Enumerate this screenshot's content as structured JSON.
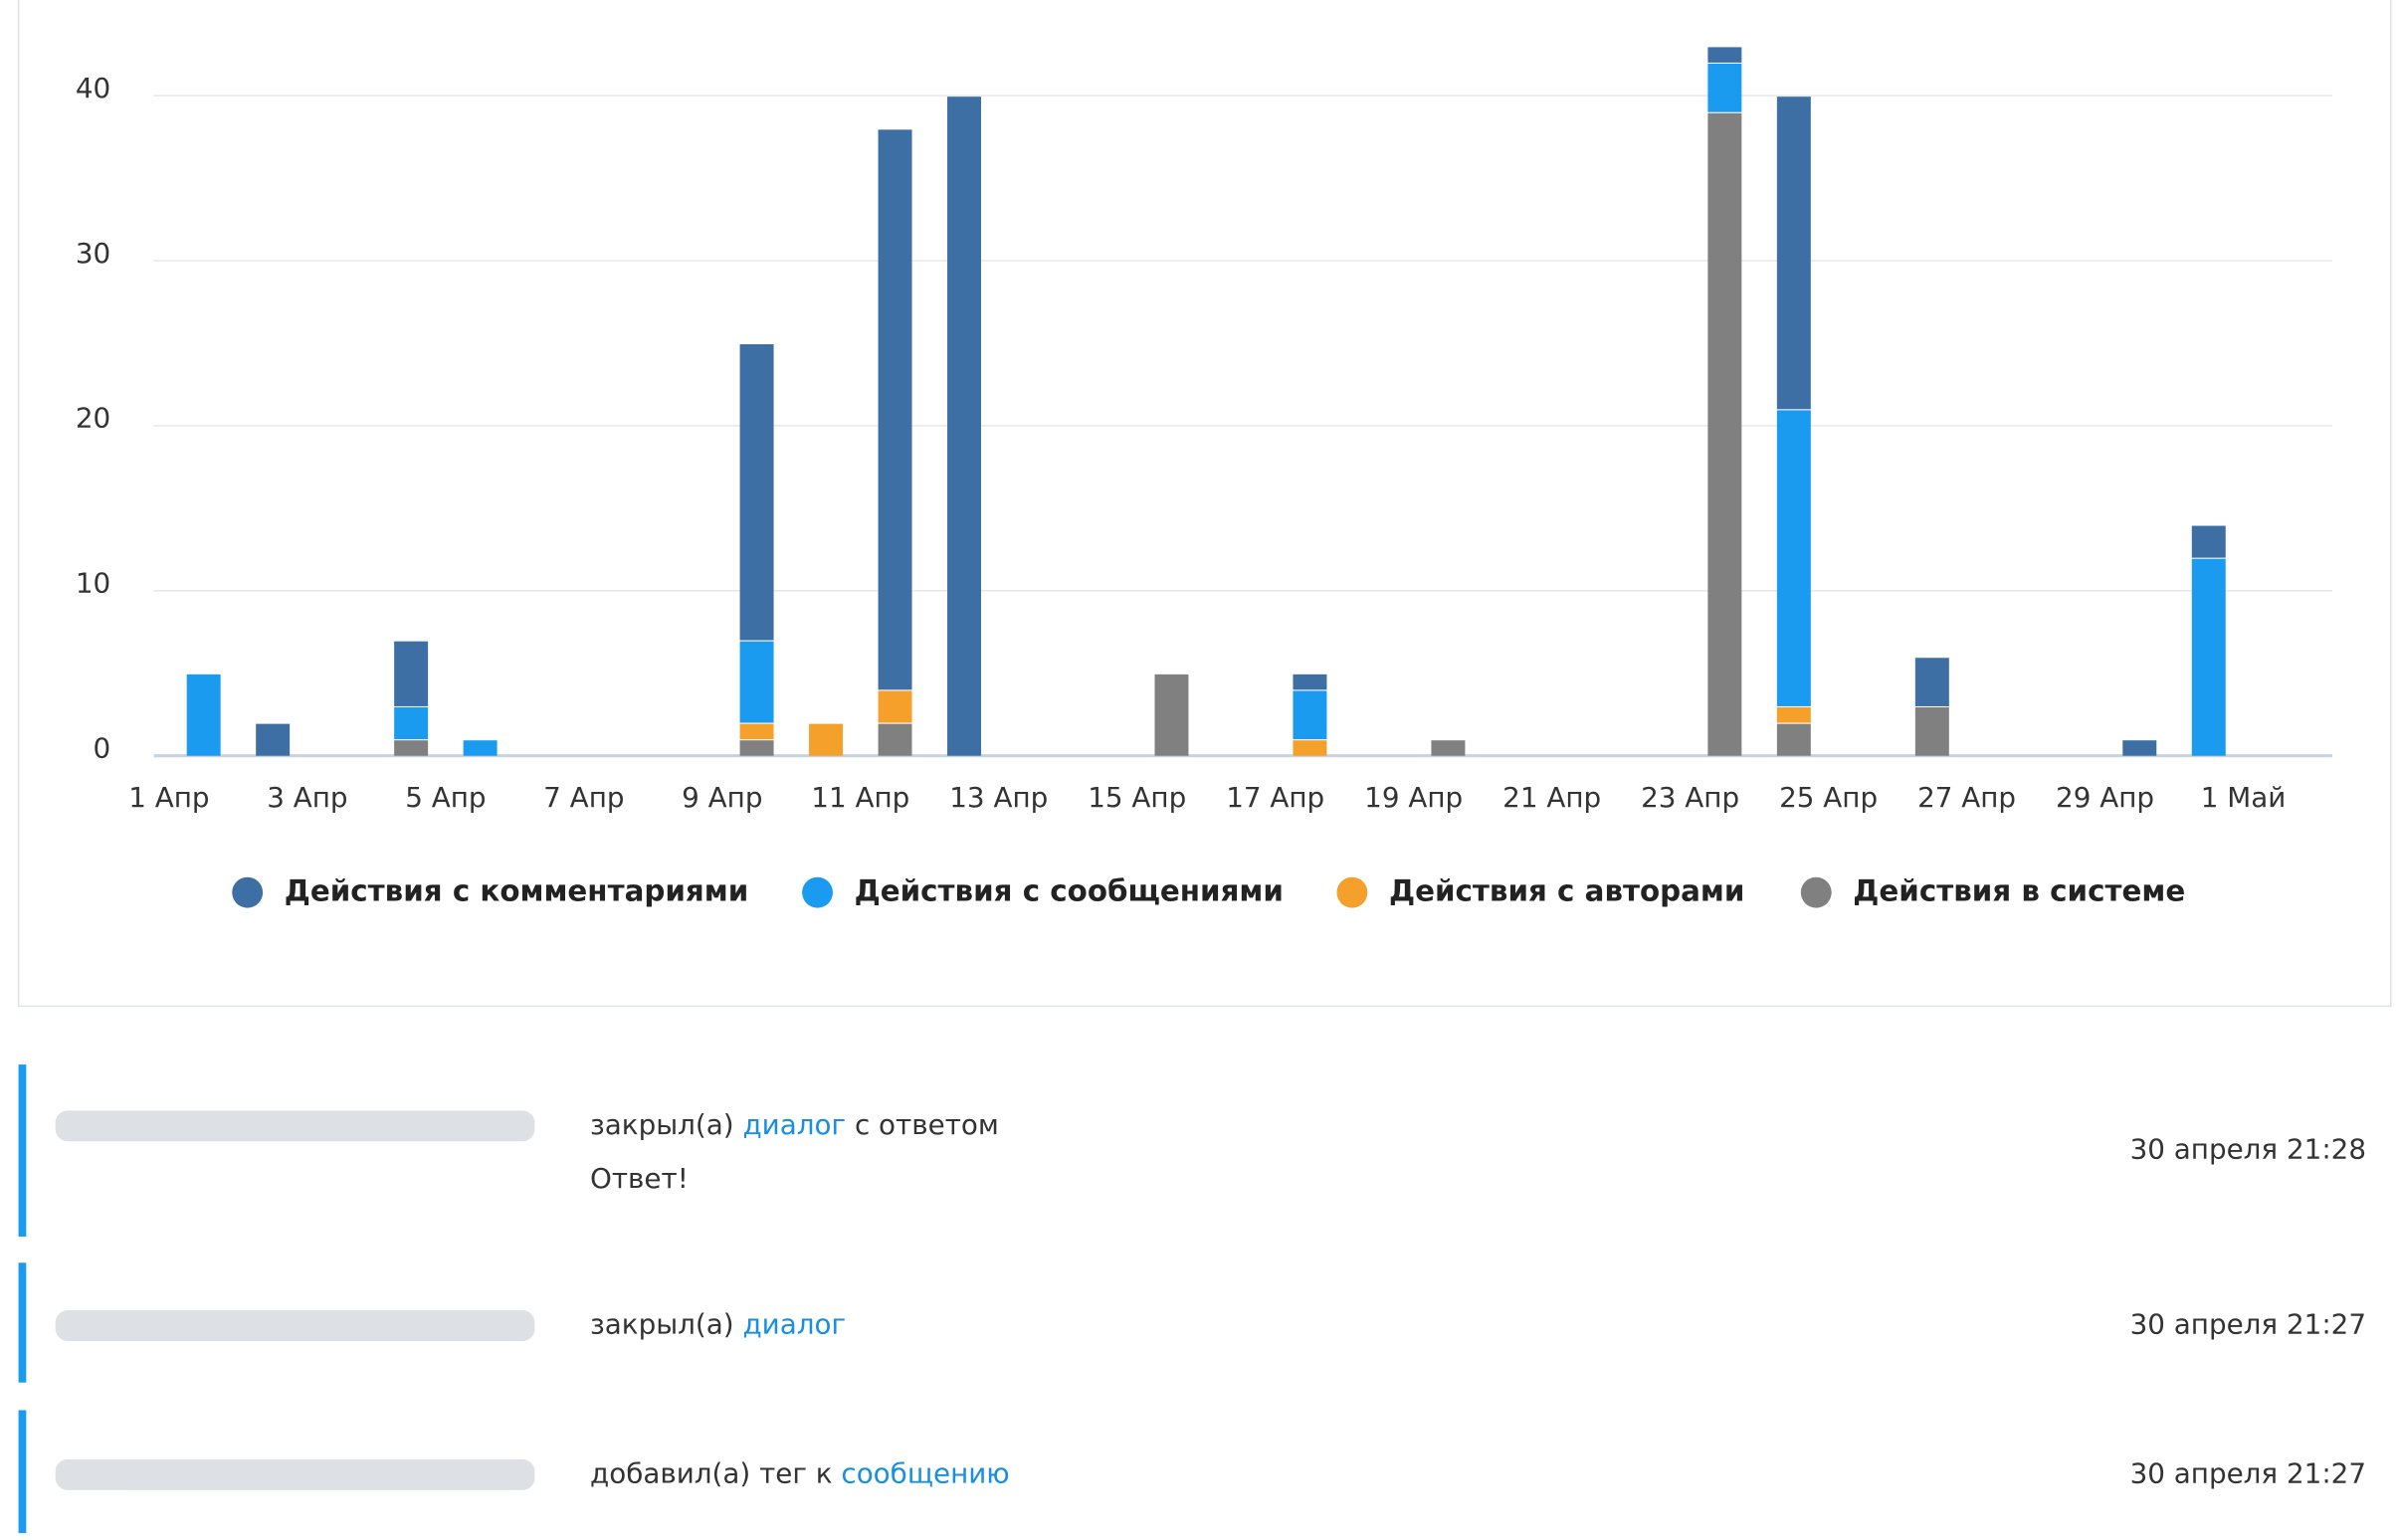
{
  "chart_data": {
    "type": "bar",
    "stacked": true,
    "categories": [
      "1 Апр",
      null,
      "3 Апр",
      null,
      "5 Апр",
      null,
      "7 Апр",
      null,
      "9 Апр",
      null,
      "11 Апр",
      null,
      "13 Апр",
      null,
      "15 Апр",
      null,
      "17 Апр",
      null,
      "19 Апр",
      null,
      "21 Апр",
      null,
      "23 Апр",
      null,
      "25 Апр",
      null,
      "27 Апр",
      null,
      "29 Апр",
      null,
      "1 Май"
    ],
    "series": [
      {
        "name": "Действия с комментариями",
        "color": "#3d6fa5",
        "values": [
          0,
          2,
          0,
          4,
          0,
          0,
          0,
          0,
          18,
          0,
          34,
          40,
          0,
          0,
          0,
          0,
          1,
          0,
          0,
          0,
          0,
          0,
          1,
          19,
          0,
          3,
          0,
          0,
          1,
          2,
          0
        ]
      },
      {
        "name": "Действия с сообщениями",
        "color": "#1a9bf0",
        "values": [
          5,
          0,
          0,
          2,
          1,
          0,
          0,
          0,
          5,
          0,
          0,
          0,
          0,
          0,
          0,
          0,
          3,
          0,
          0,
          0,
          0,
          0,
          3,
          18,
          0,
          0,
          0,
          0,
          0,
          12,
          0
        ]
      },
      {
        "name": "Действия с авторами",
        "color": "#f5a02a",
        "values": [
          0,
          0,
          0,
          0,
          0,
          0,
          0,
          0,
          1,
          2,
          2,
          0,
          0,
          0,
          0,
          0,
          1,
          0,
          0,
          0,
          0,
          0,
          0,
          1,
          0,
          0,
          0,
          0,
          0,
          0,
          0
        ]
      },
      {
        "name": "Действия в системе",
        "color": "#808080",
        "values": [
          0,
          0,
          0,
          1,
          0,
          0,
          0,
          0,
          1,
          0,
          2,
          0,
          0,
          0,
          5,
          0,
          0,
          0,
          1,
          0,
          0,
          0,
          39,
          2,
          0,
          3,
          0,
          0,
          0,
          0,
          0
        ]
      }
    ],
    "ylim": [
      0,
      43
    ],
    "yticks": [
      0,
      10,
      20,
      30,
      40
    ],
    "grid": true,
    "legend": "bottom"
  },
  "activity": {
    "items": [
      {
        "before": "закрыл(а)",
        "link": "диалог",
        "after": "с ответом",
        "note": "Ответ!",
        "time": "30 апреля 21:28"
      },
      {
        "before": "закрыл(а)",
        "link": "диалог",
        "time": "30 апреля 21:27"
      },
      {
        "before": "добавил(а) тег к",
        "link": "сообщению",
        "time": "30 апреля 21:27"
      }
    ]
  }
}
